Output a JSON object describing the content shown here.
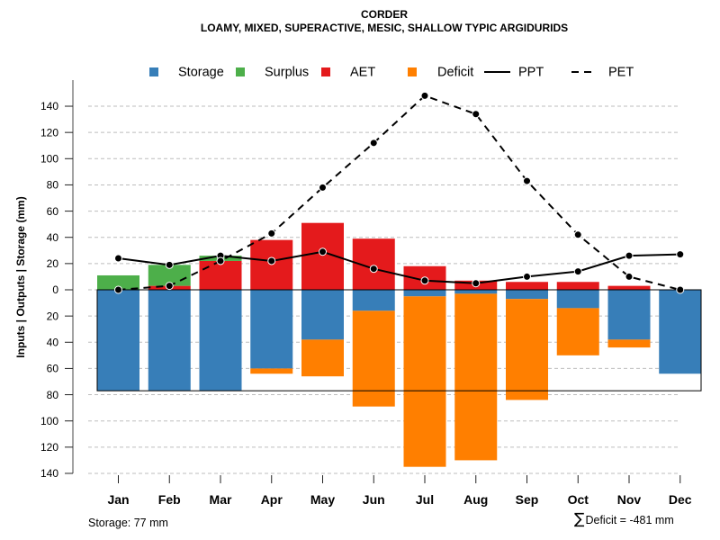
{
  "chart_data": {
    "type": "bar",
    "title": "CORDER",
    "subtitle": "LOAMY, MIXED, SUPERACTIVE, MESIC, SHALLOW TYPIC ARGIDURIDS",
    "xlabel": "",
    "ylabel": "Inputs | Outputs | Storage    (mm)",
    "ylim": [
      -140,
      140
    ],
    "y_axis": {
      "upper_ticks": [
        0,
        20,
        40,
        60,
        80,
        100,
        120,
        140
      ],
      "lower_ticks": [
        20,
        40,
        60,
        80,
        100,
        120,
        140
      ],
      "grid": true
    },
    "categories": [
      "Jan",
      "Feb",
      "Mar",
      "Apr",
      "May",
      "Jun",
      "Jul",
      "Aug",
      "Sep",
      "Oct",
      "Nov",
      "Dec"
    ],
    "legend": {
      "placement": "top",
      "items": [
        {
          "label": "Storage",
          "kind": "square",
          "color": "#377EB8"
        },
        {
          "label": "Surplus",
          "kind": "square",
          "color": "#4DAF4A"
        },
        {
          "label": "AET",
          "kind": "square",
          "color": "#E41A1C"
        },
        {
          "label": "Deficit",
          "kind": "square",
          "color": "#FF7F00"
        },
        {
          "label": "PPT",
          "kind": "solid-line",
          "color": "#000000"
        },
        {
          "label": "PET",
          "kind": "dashed-line",
          "color": "#000000"
        }
      ]
    },
    "series": [
      {
        "name": "AET",
        "kind": "bar",
        "direction": "up",
        "stack": "up",
        "color": "#E41A1C",
        "values": [
          0,
          3,
          22,
          38,
          51,
          39,
          18,
          7,
          6,
          6,
          3,
          0
        ]
      },
      {
        "name": "Surplus",
        "kind": "bar",
        "direction": "up",
        "stack": "up",
        "color": "#4DAF4A",
        "values": [
          11,
          16,
          4,
          0,
          0,
          0,
          0,
          0,
          0,
          0,
          0,
          0
        ]
      },
      {
        "name": "Storage",
        "kind": "bar",
        "direction": "down",
        "stack": "down",
        "color": "#377EB8",
        "values": [
          77,
          77,
          77,
          60,
          38,
          16,
          5,
          3,
          7,
          14,
          38,
          64
        ]
      },
      {
        "name": "Deficit",
        "kind": "bar",
        "direction": "down",
        "stack": "down",
        "color": "#FF7F00",
        "values": [
          0,
          0,
          0,
          4,
          28,
          73,
          130,
          127,
          77,
          36,
          6,
          0
        ]
      },
      {
        "name": "PPT",
        "kind": "line",
        "style": "solid",
        "color": "#000000",
        "values": [
          24,
          19,
          26,
          22,
          29,
          16,
          7,
          5,
          10,
          14,
          26,
          27
        ]
      },
      {
        "name": "PET",
        "kind": "line",
        "style": "dashed",
        "color": "#000000",
        "values": [
          0,
          3,
          22,
          43,
          78,
          112,
          148,
          134,
          83,
          42,
          10,
          0
        ]
      }
    ],
    "storage_capacity_mm": 77,
    "annotations": {
      "storage": "Storage: 77 mm",
      "deficit_symbol": "∑",
      "deficit_sum": "Deficit = -481 mm"
    }
  }
}
